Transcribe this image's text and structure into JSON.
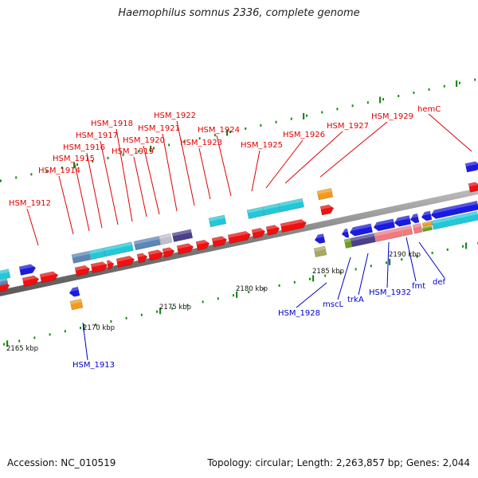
{
  "title": "Haemophilus somnus 2336, complete genome",
  "accession_text": "Accession: NC_010519",
  "summary_text": "Topology: circular; Length: 2,263,857 bp; Genes: 2,044",
  "colors": {
    "forward_label": "#e00000",
    "reverse_label": "#0000cc",
    "backbone": "#8a8a8a",
    "tick": "#1a8a1a"
  },
  "kbp_labels": [
    "2165 kbp",
    "2170 kbp",
    "2175 kbp",
    "2180 kbp",
    "2185 kbp",
    "2190 kbp"
  ],
  "forward_labels": [
    "HSM_1912",
    "HSM_1914",
    "HSM_1915",
    "HSM_1916",
    "HSM_1917",
    "HSM_1918",
    "HSM_1919",
    "HSM_1920",
    "HSM_1921",
    "HSM_1922",
    "HSM_1923",
    "HSM_1924",
    "HSM_1925",
    "HSM_1926",
    "HSM_1927",
    "HSM_1929",
    "hemC"
  ],
  "reverse_labels": [
    "HSM_1913",
    "HSM_1928",
    "mscL",
    "trkA",
    "HSM_1932",
    "fmt",
    "def"
  ]
}
